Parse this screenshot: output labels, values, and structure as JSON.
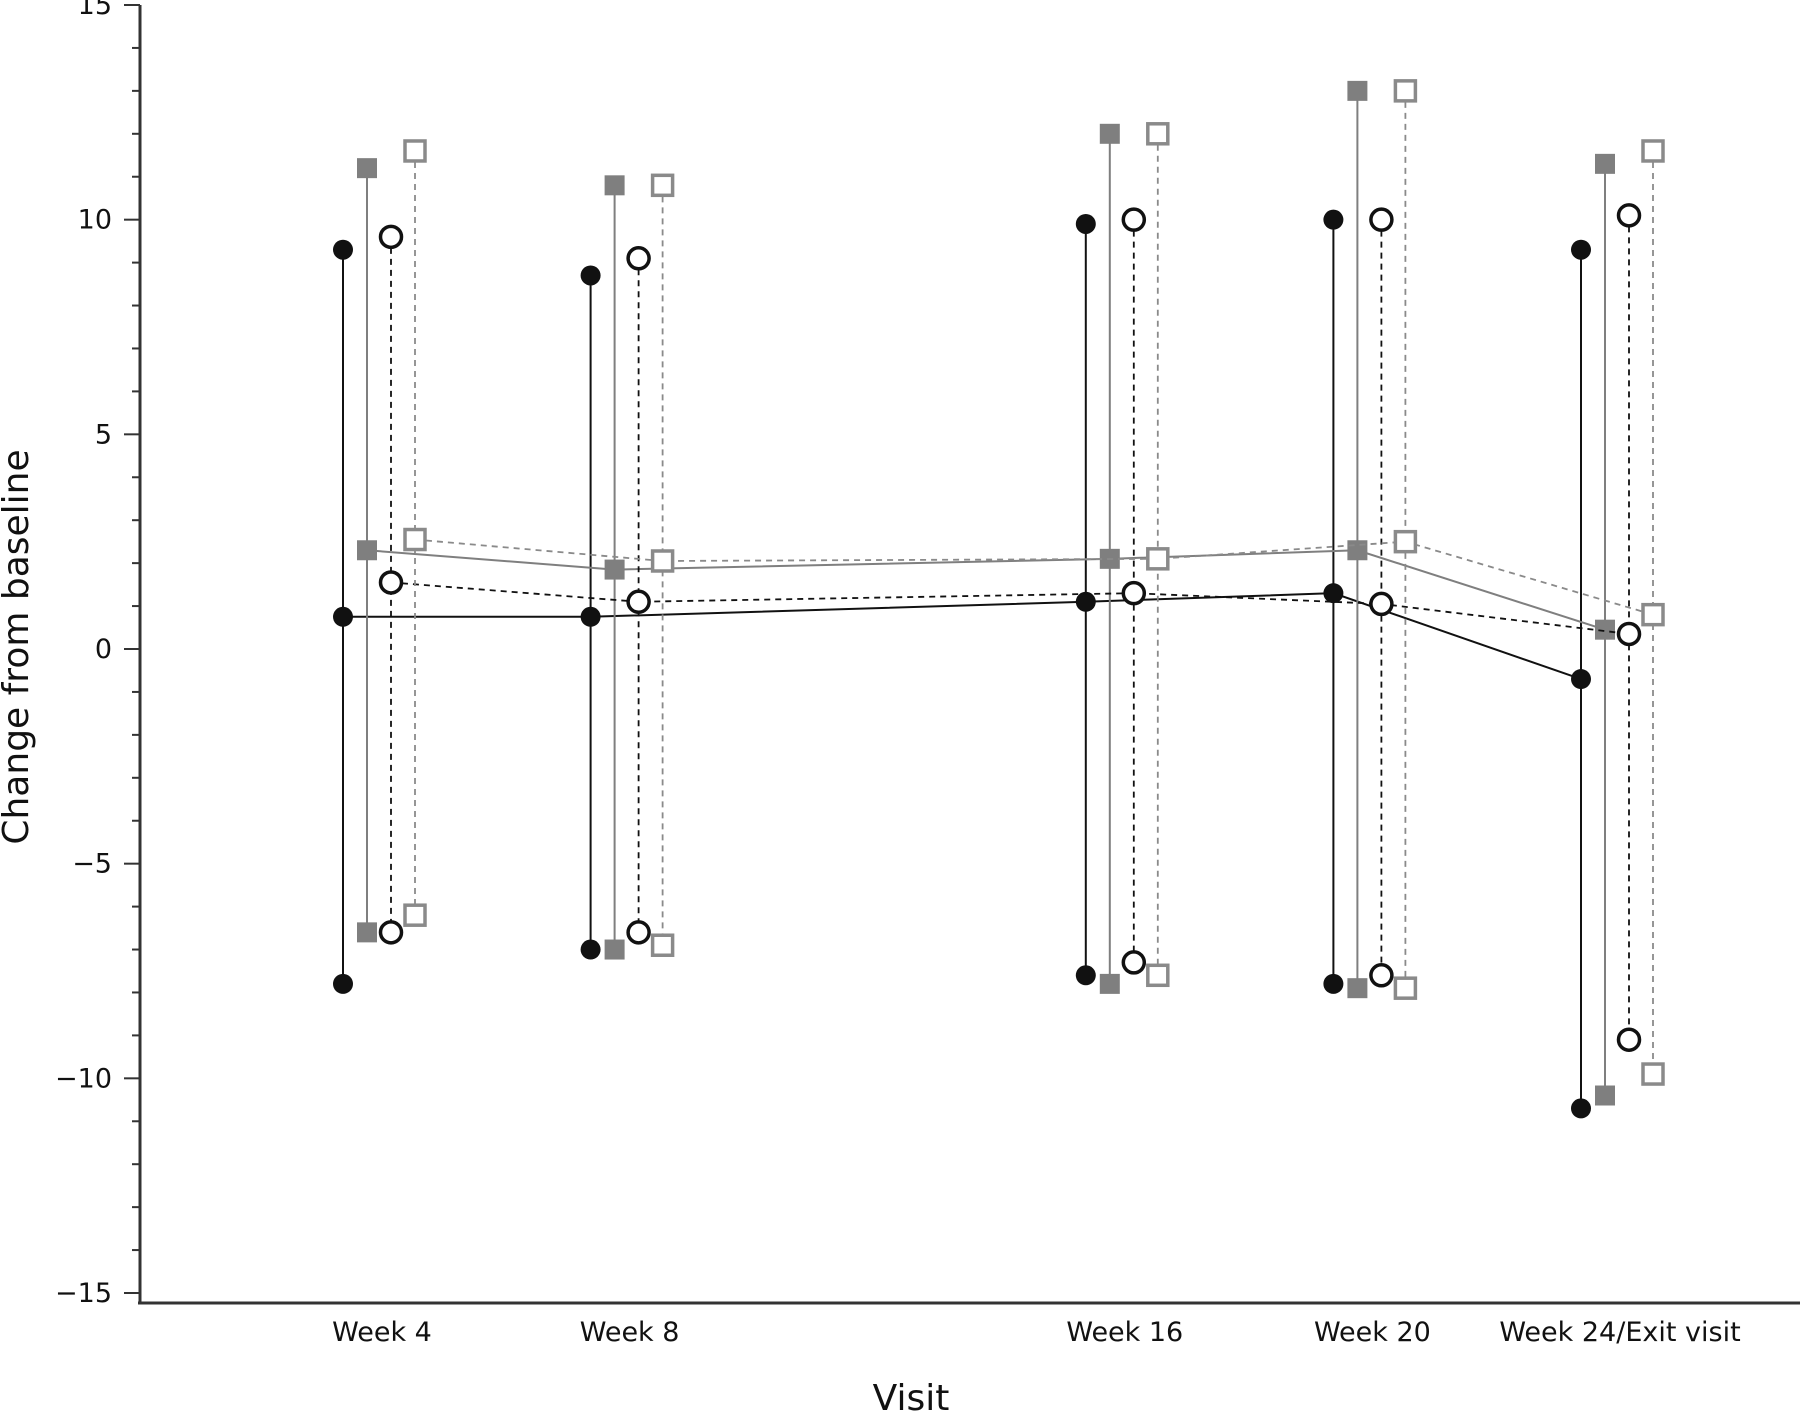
{
  "chart_data": {
    "type": "line",
    "xlabel": "Visit",
    "ylabel": "Change from baseline",
    "categories": [
      "Week 4",
      "Week 8",
      "Week 16",
      "Week 20",
      "Week 24/Exit visit"
    ],
    "x_positions": [
      4,
      8,
      16,
      20,
      24
    ],
    "ylim": [
      -15,
      15
    ],
    "yticks": [
      -15,
      -10,
      -5,
      0,
      5,
      10,
      15
    ],
    "ytick_labels": [
      "−15",
      "−10",
      "−5",
      "0",
      "5",
      "10",
      "15"
    ],
    "minor_tick_step": 1,
    "grid": false,
    "legend": "none",
    "series": [
      {
        "marker": "filled-circle",
        "color": "#111111",
        "line_style": "solid",
        "mean": [
          0.75,
          0.75,
          1.1,
          1.3,
          -0.7
        ],
        "upper": [
          9.3,
          8.7,
          9.9,
          10.0,
          9.3
        ],
        "lower": [
          -7.8,
          -7.0,
          -7.6,
          -7.8,
          -10.7
        ]
      },
      {
        "marker": "filled-square",
        "color": "#7f7f7f",
        "line_style": "solid",
        "mean": [
          2.3,
          1.85,
          2.1,
          2.3,
          0.45
        ],
        "upper": [
          11.2,
          10.8,
          12.0,
          13.0,
          11.3
        ],
        "lower": [
          -6.6,
          -7.0,
          -7.8,
          -7.9,
          -10.4
        ]
      },
      {
        "marker": "open-circle",
        "color": "#111111",
        "line_style": "dashed",
        "mean": [
          1.55,
          1.1,
          1.3,
          1.05,
          0.35
        ],
        "upper": [
          9.6,
          9.1,
          10.0,
          10.0,
          10.1
        ],
        "lower": [
          -6.6,
          -6.6,
          -7.3,
          -7.6,
          -9.1
        ]
      },
      {
        "marker": "open-square",
        "color": "#8a8a8a",
        "line_style": "dashed",
        "mean": [
          2.55,
          2.05,
          2.1,
          2.5,
          0.8
        ],
        "upper": [
          11.6,
          10.8,
          12.0,
          13.0,
          11.6
        ],
        "lower": [
          -6.2,
          -6.9,
          -7.6,
          -7.9,
          -9.9
        ]
      }
    ]
  }
}
